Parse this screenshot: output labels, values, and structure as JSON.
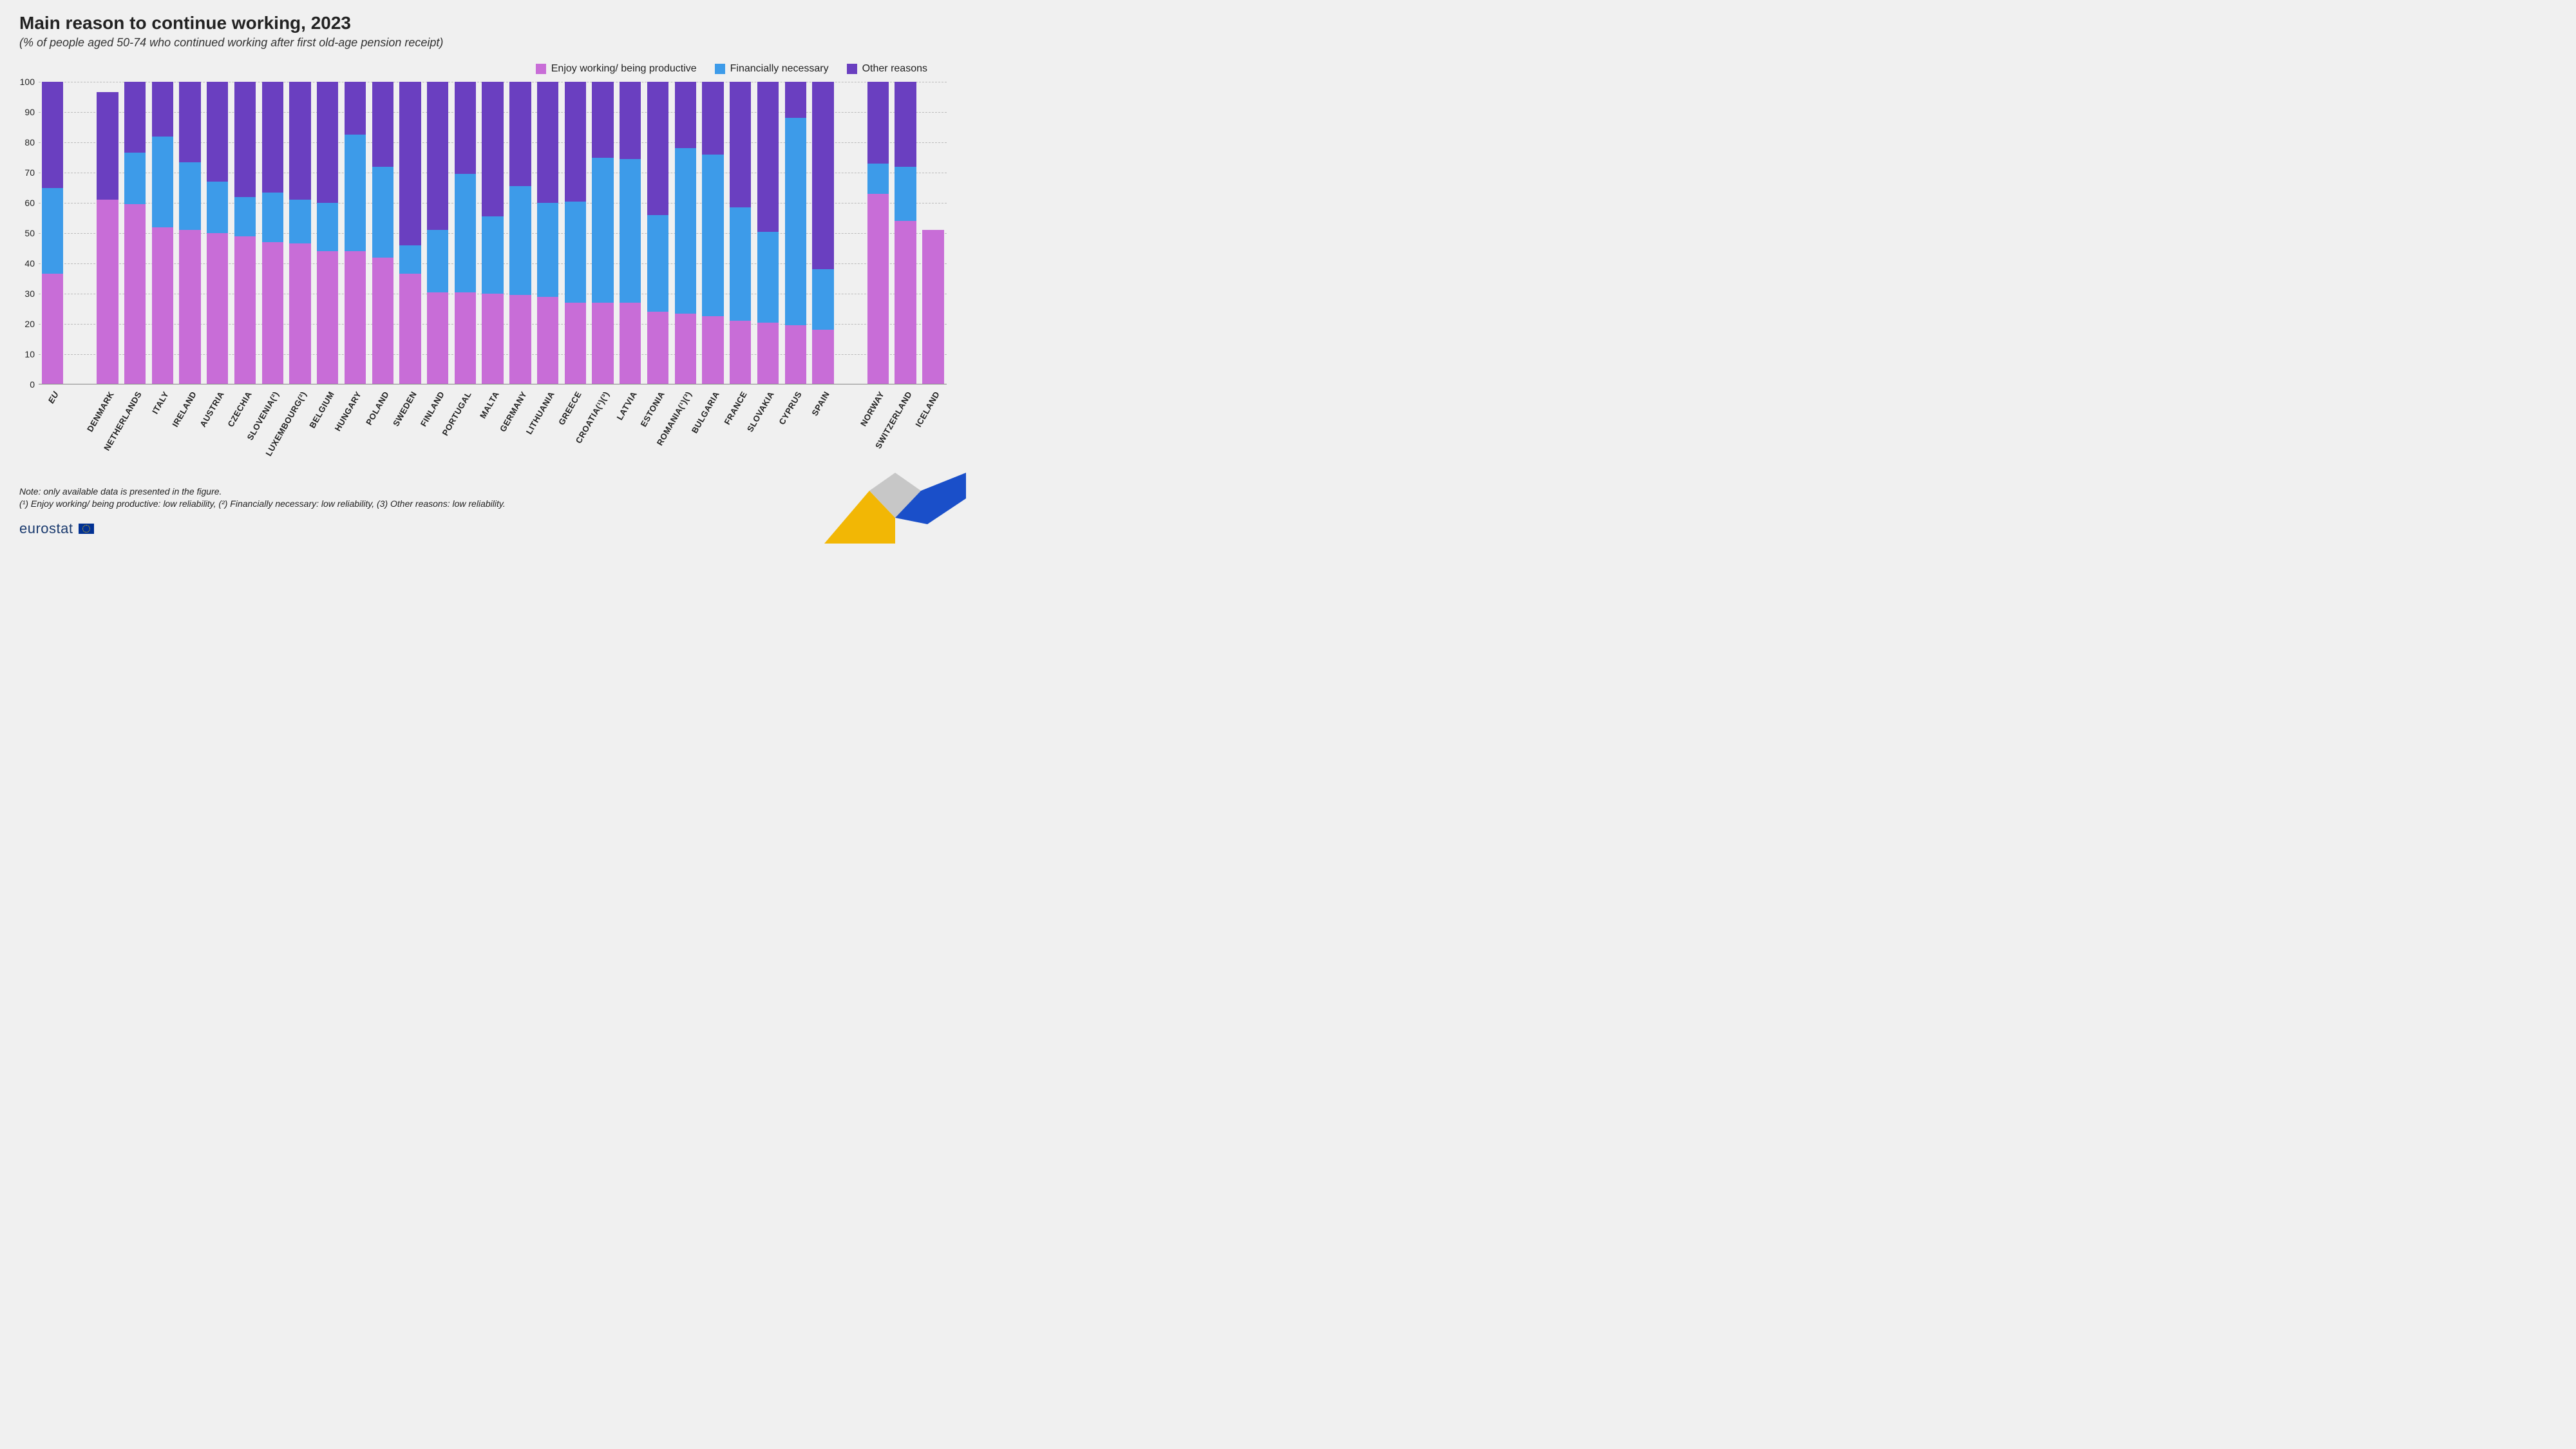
{
  "title": "Main reason to continue working, 2023",
  "subtitle": "(% of people aged 50-74 who continued working after first old-age pension receipt)",
  "legend": [
    {
      "label": "Enjoy working/ being productive",
      "color": "#c86dd7"
    },
    {
      "label": "Financially necessary",
      "color": "#3d9be9"
    },
    {
      "label": "Other reasons",
      "color": "#6a3fc0"
    }
  ],
  "chart": {
    "type": "stacked-bar",
    "ylim": [
      0,
      100
    ],
    "ytick_step": 10,
    "yticks": [
      0,
      10,
      20,
      30,
      40,
      50,
      60,
      70,
      80,
      90,
      100
    ],
    "grid_color": "#bbbbbb",
    "background_color": "#f0f0f0",
    "bar_width_ratio": 0.78,
    "colors": {
      "enjoy": "#c86dd7",
      "financial": "#3d9be9",
      "other": "#6a3fc0"
    },
    "groups": [
      {
        "gap_before": false,
        "bars": [
          {
            "label": "EU",
            "bold": true,
            "enjoy": 36.5,
            "financial": 28.5,
            "other": 35
          }
        ]
      },
      {
        "gap_before": true,
        "bars": [
          {
            "label": "DENMARK",
            "enjoy": 61,
            "financial": 0,
            "other": 35.5
          },
          {
            "label": "NETHERLANDS",
            "enjoy": 59.5,
            "financial": 17,
            "other": 23.5
          },
          {
            "label": "ITALY",
            "enjoy": 52,
            "financial": 30,
            "other": 18
          },
          {
            "label": "IRELAND",
            "enjoy": 51,
            "financial": 22.5,
            "other": 26.5
          },
          {
            "label": "AUSTRIA",
            "enjoy": 50,
            "financial": 17,
            "other": 33
          },
          {
            "label": "CZECHIA",
            "enjoy": 49,
            "financial": 13,
            "other": 38
          },
          {
            "label": "SLOVENIA(²)",
            "enjoy": 47,
            "financial": 16.5,
            "other": 36.5
          },
          {
            "label": "LUXEMBOURG(²)",
            "enjoy": 46.5,
            "financial": 14.5,
            "other": 39
          },
          {
            "label": "BELGIUM",
            "enjoy": 44,
            "financial": 16,
            "other": 40
          },
          {
            "label": "HUNGARY",
            "enjoy": 44,
            "financial": 38.5,
            "other": 17.5
          },
          {
            "label": "POLAND",
            "enjoy": 42,
            "financial": 30,
            "other": 28
          },
          {
            "label": "SWEDEN",
            "enjoy": 36.5,
            "financial": 9.5,
            "other": 54
          },
          {
            "label": "FINLAND",
            "enjoy": 30.5,
            "financial": 20.5,
            "other": 49
          },
          {
            "label": "PORTUGAL",
            "enjoy": 30.5,
            "financial": 39,
            "other": 30.5
          },
          {
            "label": "MALTA",
            "enjoy": 30,
            "financial": 25.5,
            "other": 44.5
          },
          {
            "label": "GERMANY",
            "enjoy": 29.5,
            "financial": 36,
            "other": 34.5
          },
          {
            "label": "LITHUANIA",
            "enjoy": 29,
            "financial": 31,
            "other": 40
          },
          {
            "label": "GREECE",
            "enjoy": 27,
            "financial": 33.5,
            "other": 39.5
          },
          {
            "label": "CROATIA(¹)(³)",
            "enjoy": 27,
            "financial": 48,
            "other": 25
          },
          {
            "label": "LATVIA",
            "enjoy": 27,
            "financial": 47.5,
            "other": 25.5
          },
          {
            "label": "ESTONIA",
            "enjoy": 24,
            "financial": 32,
            "other": 44
          },
          {
            "label": "ROMANIA(¹)(³)",
            "enjoy": 23.5,
            "financial": 54.5,
            "other": 22
          },
          {
            "label": "BULGARIA",
            "enjoy": 22.5,
            "financial": 53.5,
            "other": 24
          },
          {
            "label": "FRANCE",
            "enjoy": 21,
            "financial": 37.5,
            "other": 41.5
          },
          {
            "label": "SLOVAKIA",
            "enjoy": 20.5,
            "financial": 30,
            "other": 49.5
          },
          {
            "label": "CYPRUS",
            "enjoy": 19.5,
            "financial": 68.5,
            "other": 12
          },
          {
            "label": "SPAIN",
            "enjoy": 18,
            "financial": 20,
            "other": 62
          }
        ]
      },
      {
        "gap_before": true,
        "bars": [
          {
            "label": "NORWAY",
            "enjoy": 63,
            "financial": 10,
            "other": 27
          },
          {
            "label": "SWITZERLAND",
            "enjoy": 54,
            "financial": 18,
            "other": 28
          },
          {
            "label": "ICELAND",
            "enjoy": 51,
            "financial": 0,
            "other": 0
          }
        ]
      }
    ]
  },
  "notes": {
    "line1": "Note: only available data is presented in the figure.",
    "line2": "(¹) Enjoy working/ being productive: low reliability, (²) Financially necessary: low reliability, (3) Other reasons: low reliability."
  },
  "brand": {
    "text": "eurostat"
  },
  "corner_colors": {
    "yellow": "#f2b705",
    "grey": "#c7c7c7",
    "blue": "#1a4fc9"
  }
}
